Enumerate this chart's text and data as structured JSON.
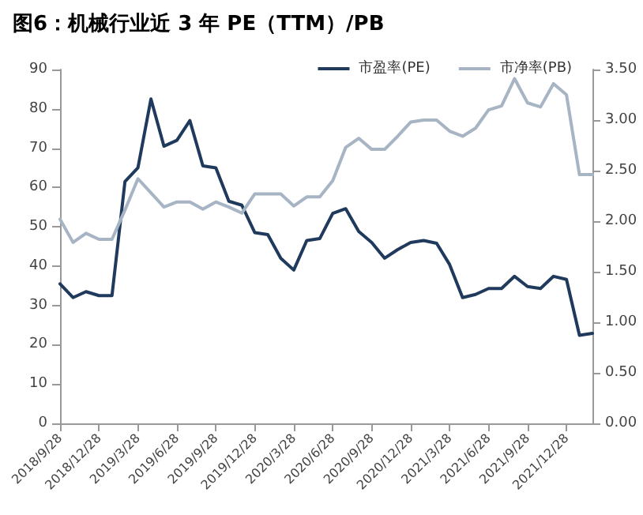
{
  "chart_data": {
    "type": "line",
    "title": "图6：机械行业近 3 年 PE（TTM）/PB",
    "categories": [
      "2018/9/28",
      null,
      null,
      "2018/12/28",
      null,
      null,
      "2019/3/28",
      null,
      null,
      "2019/6/28",
      null,
      null,
      "2019/9/28",
      null,
      null,
      "2019/12/28",
      null,
      null,
      "2020/3/28",
      null,
      null,
      "2020/6/28",
      null,
      null,
      "2020/9/28",
      null,
      null,
      "2020/12/28",
      null,
      null,
      "2021/3/28",
      null,
      null,
      "2021/6/28",
      null,
      null,
      "2021/9/28",
      null,
      null,
      "2021/12/28",
      null,
      null
    ],
    "series": [
      {
        "name": "市盈率(PE)",
        "color": "#1f3a5c",
        "values": [
          35.5,
          32,
          33.5,
          32.5,
          32.5,
          61.5,
          65,
          82.5,
          70.5,
          72,
          77,
          65.5,
          65,
          56.5,
          55.5,
          48.5,
          48,
          42,
          39,
          46.5,
          47,
          53.4,
          54.6,
          48.8,
          46,
          42,
          44.2,
          46,
          46.5,
          45.8,
          40.4,
          32,
          32.8,
          34.3,
          34.3,
          37.4,
          34.8,
          34.3,
          37.4,
          36.6,
          22.4,
          22.9
        ]
      },
      {
        "name": "市净率(PB)",
        "color": "#a6b4c4",
        "axis": "y2",
        "values": [
          2.02,
          1.79,
          1.88,
          1.82,
          1.82,
          2.11,
          2.42,
          2.28,
          2.14,
          2.19,
          2.19,
          2.12,
          2.19,
          2.14,
          2.08,
          2.27,
          2.27,
          2.27,
          2.15,
          2.24,
          2.24,
          2.4,
          2.73,
          2.82,
          2.71,
          2.71,
          2.84,
          2.98,
          3.0,
          3.0,
          2.89,
          2.84,
          2.92,
          3.1,
          3.14,
          3.41,
          3.17,
          3.13,
          3.36,
          3.25,
          2.46,
          2.46
        ]
      }
    ],
    "ylim": [
      0,
      90
    ],
    "yticks": [
      0,
      10,
      20,
      30,
      40,
      50,
      60,
      70,
      80,
      90
    ],
    "y2lim": [
      0,
      3.5
    ],
    "y2ticks": [
      {
        "value": 0,
        "label": "0.00"
      },
      {
        "value": 0.5,
        "label": "0.50"
      },
      {
        "value": 1,
        "label": "1.00"
      },
      {
        "value": 1.5,
        "label": "1.50"
      },
      {
        "value": 2,
        "label": "2.00"
      },
      {
        "value": 2.5,
        "label": "2.50"
      },
      {
        "value": 3,
        "label": "3.00"
      },
      {
        "value": 3.5,
        "label": "3.50"
      }
    ],
    "grid": false,
    "legend": "top right",
    "marker": "none",
    "line_style": "solid"
  }
}
